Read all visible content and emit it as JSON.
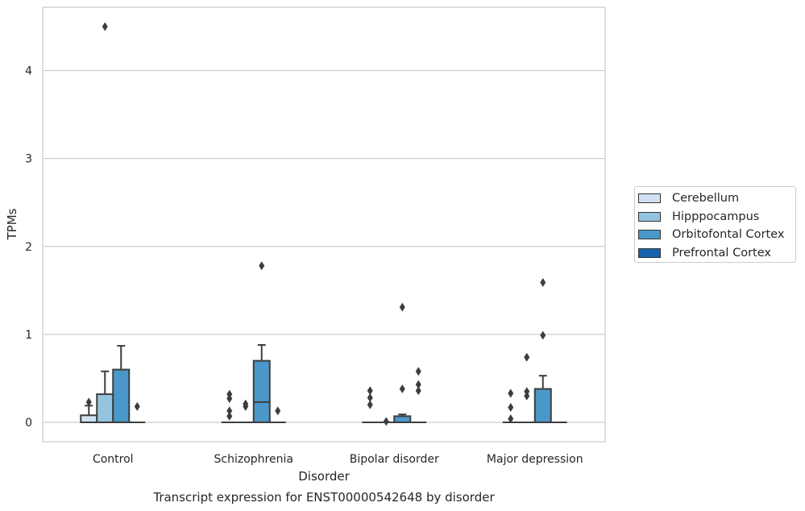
{
  "chart_data": {
    "type": "boxplot",
    "title": "",
    "caption": "Transcript expression for ENST00000542648 by disorder",
    "xlabel": "Disorder",
    "ylabel": "TPMs",
    "categories": [
      "Control",
      "Schizophrenia",
      "Bipolar disorder",
      "Major depression"
    ],
    "ylim": [
      -0.22,
      4.72
    ],
    "yticks": [
      0,
      1,
      2,
      3,
      4
    ],
    "grid": "horizontal",
    "legend_position": "right",
    "series": [
      {
        "name": "Cerebellum",
        "color": "#d0e1f2",
        "boxes": [
          {
            "q1": 0,
            "median": 0,
            "q3": 0.08,
            "whisker_low": 0,
            "whisker_high": 0.19,
            "outliers": [
              0.23
            ]
          },
          {
            "q1": 0,
            "median": 0,
            "q3": 0,
            "whisker_low": 0,
            "whisker_high": 0,
            "outliers": [
              0.07,
              0.13,
              0.27,
              0.32
            ]
          },
          {
            "q1": 0,
            "median": 0,
            "q3": 0,
            "whisker_low": 0,
            "whisker_high": 0,
            "outliers": [
              0.2,
              0.28,
              0.36
            ]
          },
          {
            "q1": 0,
            "median": 0,
            "q3": 0,
            "whisker_low": 0,
            "whisker_high": 0,
            "outliers": [
              0.04,
              0.17,
              0.33
            ]
          }
        ]
      },
      {
        "name": "Hipppocampus",
        "color": "#94c4df",
        "boxes": [
          {
            "q1": 0,
            "median": 0,
            "q3": 0.32,
            "whisker_low": 0,
            "whisker_high": 0.58,
            "outliers": [
              4.5
            ]
          },
          {
            "q1": 0,
            "median": 0,
            "q3": 0,
            "whisker_low": 0,
            "whisker_high": 0,
            "outliers": [
              0.18,
              0.21
            ]
          },
          {
            "q1": 0,
            "median": 0,
            "q3": 0,
            "whisker_low": 0,
            "whisker_high": 0,
            "outliers": [
              0.01
            ]
          },
          {
            "q1": 0,
            "median": 0,
            "q3": 0,
            "whisker_low": 0,
            "whisker_high": 0,
            "outliers": [
              0.3,
              0.35,
              0.74
            ]
          }
        ]
      },
      {
        "name": "Orbitofontal Cortex",
        "color": "#4a98c9",
        "boxes": [
          {
            "q1": 0,
            "median": 0,
            "q3": 0.6,
            "whisker_low": 0,
            "whisker_high": 0.87,
            "outliers": []
          },
          {
            "q1": 0,
            "median": 0.23,
            "q3": 0.7,
            "whisker_low": 0,
            "whisker_high": 0.88,
            "outliers": [
              1.78
            ]
          },
          {
            "q1": 0,
            "median": 0,
            "q3": 0.07,
            "whisker_low": 0,
            "whisker_high": 0.09,
            "outliers": [
              0.38,
              1.31
            ]
          },
          {
            "q1": 0,
            "median": 0,
            "q3": 0.38,
            "whisker_low": 0,
            "whisker_high": 0.53,
            "outliers": [
              0.99,
              1.59
            ]
          }
        ]
      },
      {
        "name": "Prefrontal Cortex",
        "color": "#1764ab",
        "boxes": [
          {
            "q1": 0,
            "median": 0,
            "q3": 0,
            "whisker_low": 0,
            "whisker_high": 0,
            "outliers": [
              0.18
            ]
          },
          {
            "q1": 0,
            "median": 0,
            "q3": 0,
            "whisker_low": 0,
            "whisker_high": 0,
            "outliers": [
              0.13
            ]
          },
          {
            "q1": 0,
            "median": 0,
            "q3": 0,
            "whisker_low": 0,
            "whisker_high": 0,
            "outliers": [
              0.36,
              0.43,
              0.58
            ]
          },
          {
            "q1": 0,
            "median": 0,
            "q3": 0,
            "whisker_low": 0,
            "whisker_high": 0,
            "outliers": []
          }
        ]
      }
    ]
  }
}
